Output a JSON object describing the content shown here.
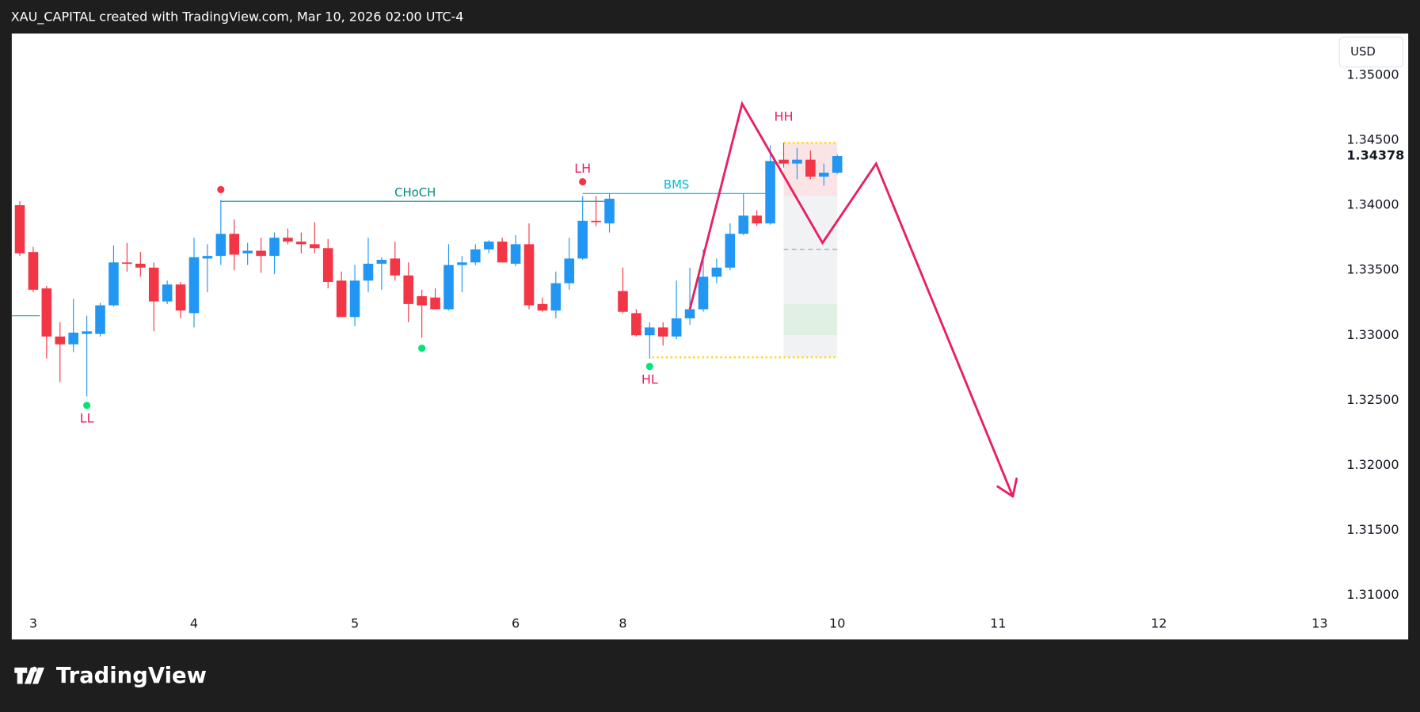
{
  "chart_data": {
    "type": "candlestick",
    "header": "XAU_CAPITAL created with TradingView.com, Mar 10, 2026 02:00 UTC-4",
    "brand": "TradingView",
    "currency": "USD",
    "up_color": "#2196f3",
    "down_color": "#f23645",
    "xlim": [
      -0.6,
      98.2
    ],
    "ylim": [
      1.3066,
      1.3532
    ],
    "xticks": [
      {
        "value": 1,
        "label": "3"
      },
      {
        "value": 13,
        "label": "4"
      },
      {
        "value": 25,
        "label": "5"
      },
      {
        "value": 37,
        "label": "6"
      },
      {
        "value": 45,
        "label": "8"
      },
      {
        "value": 61,
        "label": "10"
      },
      {
        "value": 73,
        "label": "11"
      },
      {
        "value": 85,
        "label": "12"
      },
      {
        "value": 97,
        "label": "13"
      }
    ],
    "yticks": [
      {
        "value": 1.35,
        "label": "1.35000"
      },
      {
        "value": 1.345,
        "label": "1.34500"
      },
      {
        "value": 1.34,
        "label": "1.34000"
      },
      {
        "value": 1.335,
        "label": "1.33500"
      },
      {
        "value": 1.33,
        "label": "1.33000"
      },
      {
        "value": 1.325,
        "label": "1.32500"
      },
      {
        "value": 1.32,
        "label": "1.32000"
      },
      {
        "value": 1.315,
        "label": "1.31500"
      },
      {
        "value": 1.31,
        "label": "1.31000"
      }
    ],
    "last_price": {
      "value": 1.34378,
      "label": "1.34378"
    },
    "x": [
      0,
      1,
      2,
      3,
      4,
      5,
      6,
      7,
      8,
      9,
      10,
      11,
      12,
      13,
      14,
      15,
      16,
      17,
      18,
      19,
      20,
      21,
      22,
      23,
      24,
      25,
      26,
      27,
      28,
      29,
      30,
      31,
      32,
      33,
      34,
      35,
      36,
      37,
      38,
      39,
      40,
      41,
      42,
      43,
      44,
      45,
      46,
      47,
      48,
      49,
      50,
      51,
      52,
      53,
      54,
      55,
      56,
      57,
      58,
      59,
      60,
      61
    ],
    "open": [
      1.34,
      1.3364,
      1.3336,
      1.3299,
      1.3293,
      1.3301,
      1.3301,
      1.3323,
      1.3356,
      1.3355,
      1.3352,
      1.3326,
      1.3339,
      1.3317,
      1.3359,
      1.3361,
      1.3378,
      1.3363,
      1.3365,
      1.3361,
      1.3375,
      1.3372,
      1.337,
      1.3367,
      1.3342,
      1.3314,
      1.3342,
      1.3355,
      1.3359,
      1.3346,
      1.333,
      1.3329,
      1.332,
      1.3354,
      1.3356,
      1.3366,
      1.3372,
      1.3355,
      1.337,
      1.3324,
      1.3319,
      1.334,
      1.3359,
      1.3388,
      1.3386,
      1.3334,
      1.3317,
      1.33,
      1.3306,
      1.3299,
      1.3313,
      1.332,
      1.3345,
      1.3352,
      1.3378,
      1.3392,
      1.3386,
      1.3435,
      1.3432,
      1.3435,
      1.3422,
      1.3425
    ],
    "high": [
      1.3403,
      1.3368,
      1.3338,
      1.331,
      1.3328,
      1.3315,
      1.3325,
      1.3369,
      1.3371,
      1.3364,
      1.3356,
      1.3342,
      1.3341,
      1.3375,
      1.337,
      1.3404,
      1.3389,
      1.3371,
      1.3375,
      1.3379,
      1.3382,
      1.3379,
      1.3387,
      1.3374,
      1.3349,
      1.3354,
      1.3375,
      1.336,
      1.3372,
      1.3356,
      1.3335,
      1.3336,
      1.337,
      1.3361,
      1.337,
      1.3373,
      1.3375,
      1.3377,
      1.3386,
      1.3329,
      1.3349,
      1.3375,
      1.3407,
      1.3407,
      1.3409,
      1.3352,
      1.332,
      1.331,
      1.331,
      1.3342,
      1.3352,
      1.3366,
      1.3359,
      1.3386,
      1.3409,
      1.3396,
      1.3446,
      1.3448,
      1.3444,
      1.3442,
      1.3432,
      1.3439
    ],
    "low": [
      1.3361,
      1.3333,
      1.3282,
      1.3264,
      1.3287,
      1.3253,
      1.3299,
      1.3322,
      1.3349,
      1.3345,
      1.3303,
      1.3324,
      1.3313,
      1.3306,
      1.3333,
      1.3354,
      1.335,
      1.3354,
      1.3348,
      1.3347,
      1.337,
      1.3363,
      1.3363,
      1.3336,
      1.3314,
      1.3307,
      1.3333,
      1.3335,
      1.3342,
      1.331,
      1.3298,
      1.332,
      1.3319,
      1.3333,
      1.3354,
      1.3363,
      1.3356,
      1.3353,
      1.332,
      1.3318,
      1.3313,
      1.3335,
      1.3358,
      1.3384,
      1.3379,
      1.3317,
      1.3299,
      1.3282,
      1.3292,
      1.3297,
      1.3308,
      1.3318,
      1.334,
      1.335,
      1.3377,
      1.3384,
      1.3385,
      1.3429,
      1.342,
      1.342,
      1.3415,
      1.3424
    ],
    "close": [
      1.3363,
      1.3335,
      1.3299,
      1.3293,
      1.3302,
      1.3303,
      1.3323,
      1.3356,
      1.3355,
      1.3352,
      1.3326,
      1.3339,
      1.3319,
      1.336,
      1.3361,
      1.3378,
      1.3362,
      1.3365,
      1.3361,
      1.3375,
      1.3372,
      1.337,
      1.3367,
      1.3341,
      1.3314,
      1.3342,
      1.3355,
      1.3358,
      1.3346,
      1.3324,
      1.3323,
      1.332,
      1.3354,
      1.3356,
      1.3366,
      1.3372,
      1.3356,
      1.337,
      1.3323,
      1.3319,
      1.334,
      1.3359,
      1.3388,
      1.3387,
      1.3405,
      1.3318,
      1.33,
      1.3306,
      1.3299,
      1.3313,
      1.332,
      1.3345,
      1.3352,
      1.3378,
      1.3392,
      1.3386,
      1.3434,
      1.3432,
      1.3435,
      1.3422,
      1.3425,
      1.34378
    ],
    "annotations": [
      {
        "text": "CHoCH",
        "x": [
          15,
          44
        ],
        "y": 1.3403,
        "color": "#00897b"
      },
      {
        "text": "BMS",
        "x": [
          42,
          56
        ],
        "y": 1.3409,
        "color": "#00bcd4"
      }
    ],
    "levels": [
      {
        "x": [
          -0.6,
          1.5
        ],
        "y": 1.3315,
        "color": "#26a69a",
        "dash": "solid"
      },
      {
        "x": [
          57,
          61
        ],
        "y": 1.3448,
        "color": "#ffd600",
        "dash": "dotted"
      },
      {
        "x": [
          47.2,
          61
        ],
        "y": 1.3283,
        "color": "#ffd600",
        "dash": "dotted"
      },
      {
        "x": [
          57,
          61
        ],
        "y": 1.3366,
        "color": "#9598a1",
        "dash": "dashed"
      }
    ],
    "zones": [
      {
        "x": [
          57,
          61
        ],
        "y": [
          1.3448,
          1.3407
        ],
        "color": "#fbe4e6"
      },
      {
        "x": [
          57,
          61
        ],
        "y": [
          1.3407,
          1.3324
        ],
        "color": "#f1f2f4"
      },
      {
        "x": [
          57,
          61
        ],
        "y": [
          1.3324,
          1.33
        ],
        "color": "#e0f1e4"
      },
      {
        "x": [
          57,
          61
        ],
        "y": [
          1.33,
          1.3283
        ],
        "color": "#f1f2f4"
      }
    ],
    "pivots": [
      {
        "label": "LL",
        "x": 5,
        "y": 1.3246,
        "dot": true,
        "dot_color": "#00e676",
        "position": "below"
      },
      {
        "x": 15,
        "y": 1.3412,
        "dot": true,
        "dot_color": "#f23645",
        "position": "above"
      },
      {
        "x": 30,
        "y": 1.329,
        "dot": true,
        "dot_color": "#00e676",
        "position": "below"
      },
      {
        "label": "LH",
        "x": 42,
        "y": 1.3418,
        "dot": true,
        "dot_color": "#f23645",
        "position": "above"
      },
      {
        "label": "HL",
        "x": 47,
        "y": 1.3276,
        "dot": true,
        "dot_color": "#00e676",
        "position": "below"
      },
      {
        "label": "HH",
        "x": 57,
        "y": 1.3458,
        "dot": false,
        "position": "above"
      }
    ],
    "label_color": "#e91e63",
    "projection": {
      "x": [
        50,
        53.9,
        59.9,
        63.9,
        74.1
      ],
      "y": [
        1.332,
        1.3478,
        1.3371,
        1.3432,
        1.3176
      ],
      "color": "#e91e63"
    }
  }
}
